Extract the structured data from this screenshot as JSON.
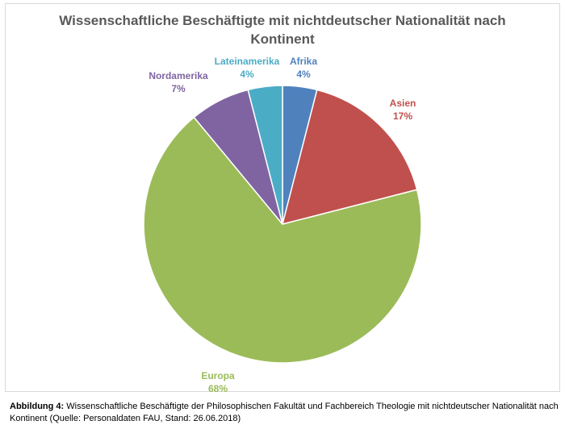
{
  "chart_data": {
    "type": "pie",
    "title_lines": [
      "Wissenschaftliche Beschäftigte mit nichtdeutscher Nationalität nach",
      "Kontinent"
    ],
    "categories": [
      "Afrika",
      "Asien",
      "Europa",
      "Nordamerika",
      "Lateinamerika"
    ],
    "values": [
      4,
      17,
      68,
      7,
      4
    ],
    "value_labels": [
      "4%",
      "17%",
      "68%",
      "7%",
      "4%"
    ],
    "colors": [
      "#4f81bd",
      "#c0504d",
      "#9bbb59",
      "#8064a2",
      "#4bacc6"
    ],
    "start_angle_deg": 0,
    "direction": "clockwise"
  },
  "caption": {
    "bold": "Abbildung 4:",
    "text": " Wissenschaftliche Beschäftigte der Philosophischen Fakultät und Fachbereich Theologie mit nichtdeutscher Nationalität nach Kontinent (Quelle: Personaldaten FAU, Stand: 26.06.2018)"
  }
}
